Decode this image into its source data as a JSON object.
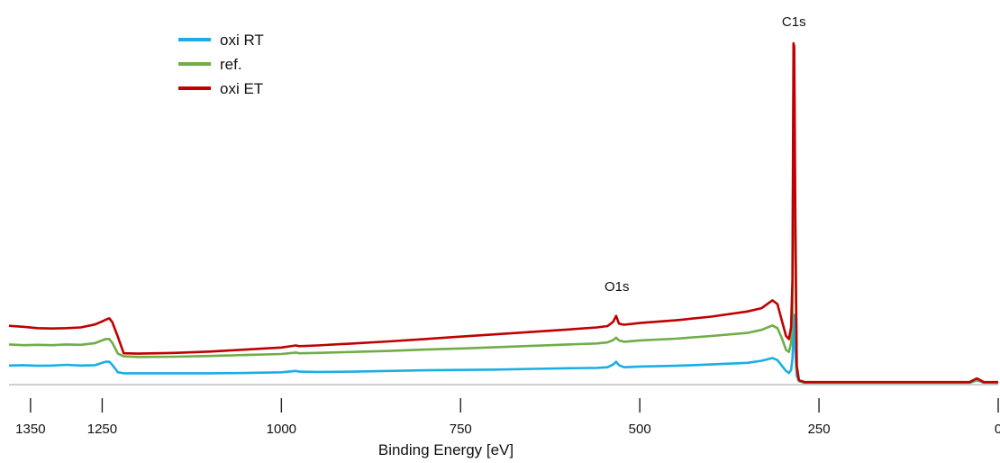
{
  "chart_data": {
    "type": "line",
    "title": "",
    "xlabel": "Binding Energy [eV]",
    "ylabel": "",
    "x_reversed": true,
    "xlim": [
      1380,
      0
    ],
    "ylim": [
      0,
      100
    ],
    "xticks": [
      1350,
      1250,
      1000,
      750,
      500,
      250,
      0
    ],
    "grid": false,
    "legend_position": "top-left",
    "annotations": [
      {
        "text": "C1s",
        "x": 285,
        "y": 105
      },
      {
        "text": "O1s",
        "x": 532,
        "y": 27
      }
    ],
    "series": [
      {
        "name": "oxi RT",
        "color": "#1aaee5",
        "points": [
          [
            1380,
            5.1
          ],
          [
            1360,
            5.2
          ],
          [
            1340,
            5.0
          ],
          [
            1320,
            5.1
          ],
          [
            1300,
            5.3
          ],
          [
            1280,
            5.1
          ],
          [
            1260,
            5.2
          ],
          [
            1250,
            5.9
          ],
          [
            1245,
            6.2
          ],
          [
            1240,
            6.2
          ],
          [
            1236,
            5.3
          ],
          [
            1228,
            3.1
          ],
          [
            1220,
            2.8
          ],
          [
            1200,
            2.8
          ],
          [
            1150,
            2.8
          ],
          [
            1100,
            2.8
          ],
          [
            1050,
            2.9
          ],
          [
            1000,
            3.1
          ],
          [
            980,
            3.5
          ],
          [
            975,
            3.3
          ],
          [
            950,
            3.2
          ],
          [
            900,
            3.3
          ],
          [
            850,
            3.5
          ],
          [
            800,
            3.7
          ],
          [
            750,
            3.8
          ],
          [
            700,
            3.9
          ],
          [
            650,
            4.1
          ],
          [
            600,
            4.3
          ],
          [
            560,
            4.4
          ],
          [
            545,
            4.6
          ],
          [
            537,
            5.4
          ],
          [
            533,
            6.2
          ],
          [
            529,
            5.2
          ],
          [
            522,
            4.6
          ],
          [
            500,
            4.8
          ],
          [
            450,
            5.0
          ],
          [
            400,
            5.4
          ],
          [
            350,
            5.9
          ],
          [
            330,
            6.5
          ],
          [
            315,
            7.3
          ],
          [
            308,
            6.7
          ],
          [
            302,
            5.1
          ],
          [
            296,
            3.5
          ],
          [
            292,
            2.9
          ],
          [
            289,
            3.8
          ],
          [
            287,
            7.0
          ],
          [
            285.5,
            15
          ],
          [
            284.5,
            20
          ],
          [
            283,
            9
          ],
          [
            281,
            2
          ],
          [
            278,
            0.5
          ],
          [
            270,
            0.0
          ],
          [
            200,
            0.0
          ],
          [
            100,
            0.0
          ],
          [
            40,
            0.0
          ],
          [
            30,
            0.7
          ],
          [
            26,
            0.5
          ],
          [
            20,
            0.0
          ],
          [
            0,
            0.0
          ]
        ]
      },
      {
        "name": "ref.",
        "color": "#70ad47",
        "points": [
          [
            1380,
            11.3
          ],
          [
            1360,
            11.1
          ],
          [
            1340,
            11.2
          ],
          [
            1320,
            11.1
          ],
          [
            1300,
            11.3
          ],
          [
            1280,
            11.2
          ],
          [
            1260,
            11.7
          ],
          [
            1250,
            12.5
          ],
          [
            1245,
            12.9
          ],
          [
            1240,
            12.9
          ],
          [
            1236,
            11.8
          ],
          [
            1228,
            8.6
          ],
          [
            1220,
            7.8
          ],
          [
            1200,
            7.6
          ],
          [
            1150,
            7.7
          ],
          [
            1100,
            7.9
          ],
          [
            1050,
            8.2
          ],
          [
            1000,
            8.5
          ],
          [
            980,
            8.9
          ],
          [
            975,
            8.7
          ],
          [
            950,
            8.8
          ],
          [
            900,
            9.1
          ],
          [
            850,
            9.4
          ],
          [
            800,
            9.8
          ],
          [
            750,
            10.1
          ],
          [
            700,
            10.5
          ],
          [
            650,
            10.9
          ],
          [
            600,
            11.3
          ],
          [
            560,
            11.6
          ],
          [
            545,
            11.9
          ],
          [
            537,
            12.6
          ],
          [
            533,
            13.3
          ],
          [
            529,
            12.5
          ],
          [
            522,
            12.1
          ],
          [
            500,
            12.5
          ],
          [
            450,
            13.0
          ],
          [
            400,
            13.8
          ],
          [
            350,
            14.7
          ],
          [
            330,
            15.6
          ],
          [
            315,
            16.9
          ],
          [
            308,
            16.1
          ],
          [
            302,
            13.3
          ],
          [
            296,
            9.7
          ],
          [
            292,
            9.1
          ],
          [
            289,
            11.8
          ],
          [
            287,
            20
          ],
          [
            285.5,
            85
          ],
          [
            284.5,
            90
          ],
          [
            283,
            40
          ],
          [
            281,
            4
          ],
          [
            278,
            0.6
          ],
          [
            270,
            0.1
          ],
          [
            200,
            0.1
          ],
          [
            100,
            0.1
          ],
          [
            40,
            0.1
          ],
          [
            30,
            0.9
          ],
          [
            26,
            0.6
          ],
          [
            20,
            0.1
          ],
          [
            0,
            0.1
          ]
        ]
      },
      {
        "name": "oxi ET",
        "color": "#c00000",
        "points": [
          [
            1380,
            16.8
          ],
          [
            1360,
            16.5
          ],
          [
            1340,
            16.1
          ],
          [
            1320,
            16.0
          ],
          [
            1300,
            16.1
          ],
          [
            1280,
            16.3
          ],
          [
            1260,
            17.2
          ],
          [
            1250,
            18.1
          ],
          [
            1245,
            18.6
          ],
          [
            1240,
            19.0
          ],
          [
            1236,
            17.9
          ],
          [
            1228,
            13.5
          ],
          [
            1220,
            8.7
          ],
          [
            1200,
            8.6
          ],
          [
            1150,
            8.8
          ],
          [
            1100,
            9.2
          ],
          [
            1050,
            9.8
          ],
          [
            1000,
            10.4
          ],
          [
            980,
            11.0
          ],
          [
            975,
            10.8
          ],
          [
            950,
            11.0
          ],
          [
            900,
            11.6
          ],
          [
            850,
            12.2
          ],
          [
            800,
            12.9
          ],
          [
            750,
            13.6
          ],
          [
            700,
            14.3
          ],
          [
            650,
            15.0
          ],
          [
            600,
            15.7
          ],
          [
            560,
            16.3
          ],
          [
            545,
            16.7
          ],
          [
            537,
            18.0
          ],
          [
            533,
            19.7
          ],
          [
            529,
            17.4
          ],
          [
            522,
            17.1
          ],
          [
            500,
            17.6
          ],
          [
            450,
            18.4
          ],
          [
            400,
            19.5
          ],
          [
            350,
            21.0
          ],
          [
            330,
            22.0
          ],
          [
            315,
            24.3
          ],
          [
            308,
            23.2
          ],
          [
            302,
            18.5
          ],
          [
            296,
            13.8
          ],
          [
            292,
            12.9
          ],
          [
            289,
            16.3
          ],
          [
            287,
            30
          ],
          [
            285.5,
            100
          ],
          [
            284.5,
            99
          ],
          [
            283,
            50
          ],
          [
            281,
            5
          ],
          [
            278,
            0.8
          ],
          [
            270,
            0.2
          ],
          [
            200,
            0.2
          ],
          [
            100,
            0.2
          ],
          [
            40,
            0.2
          ],
          [
            30,
            1.3
          ],
          [
            26,
            0.9
          ],
          [
            20,
            0.2
          ],
          [
            0,
            0.2
          ]
        ]
      }
    ]
  }
}
